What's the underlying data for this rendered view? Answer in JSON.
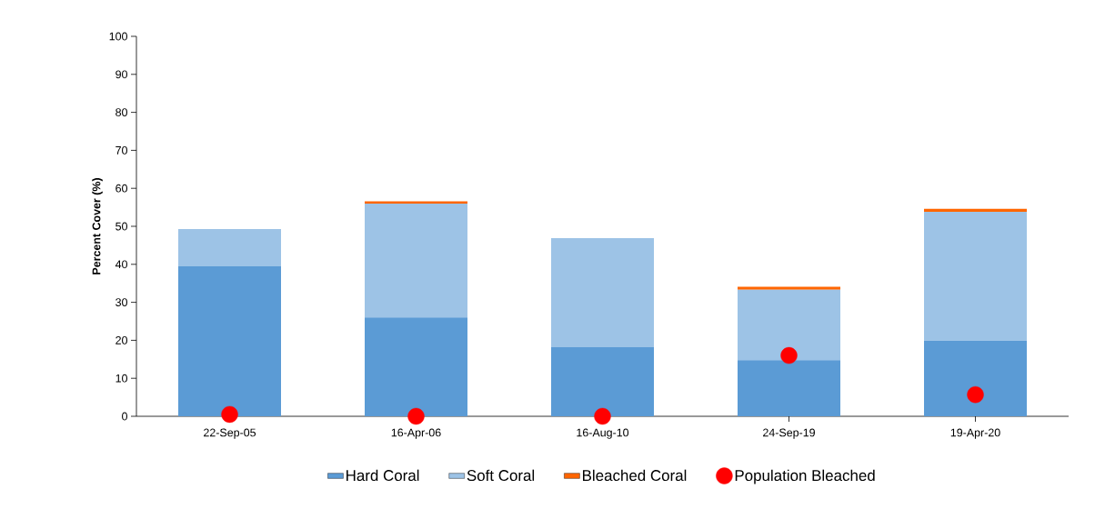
{
  "chart_data": {
    "type": "bar",
    "stacked": true,
    "ylabel": "Percent Cover (%)",
    "categories": [
      "22-Sep-05",
      "16-Apr-06",
      "16-Aug-10",
      "24-Sep-19",
      "19-Apr-20"
    ],
    "series": [
      {
        "name": "Hard Coral",
        "color": "#5b9bd5",
        "values": [
          39.5,
          26,
          18.2,
          14.8,
          19.9
        ]
      },
      {
        "name": "Soft Coral",
        "color": "#9dc3e6",
        "values": [
          9.8,
          30,
          28.7,
          18.5,
          33.9
        ]
      },
      {
        "name": "Bleached Coral",
        "color": "#ff6600",
        "values": [
          0,
          0.6,
          0,
          0.8,
          0.8
        ]
      },
      {
        "name": "Population Bleached",
        "type": "scatter",
        "color": "#ff0000",
        "values": [
          0.5,
          0,
          0,
          16,
          5.7
        ]
      }
    ],
    "ylim": [
      0,
      100
    ],
    "yticks": [
      0,
      10,
      20,
      30,
      40,
      50,
      60,
      70,
      80,
      90,
      100
    ],
    "grid": false,
    "legend": "bottom"
  }
}
